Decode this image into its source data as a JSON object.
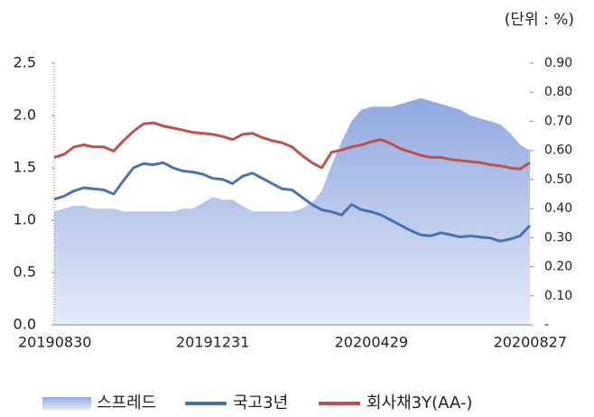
{
  "chart_data": {
    "type": "line",
    "unit_label": "(단위 : %)",
    "categories": [
      "20190830",
      null,
      null,
      null,
      null,
      null,
      null,
      null,
      null,
      null,
      null,
      null,
      null,
      null,
      null,
      null,
      "20191231",
      null,
      null,
      null,
      null,
      null,
      null,
      null,
      null,
      null,
      null,
      null,
      null,
      null,
      null,
      null,
      "20200429",
      null,
      null,
      null,
      null,
      null,
      null,
      null,
      null,
      null,
      null,
      null,
      null,
      null,
      null,
      null,
      "20200827"
    ],
    "series": [
      {
        "name": "스프레드",
        "type": "area",
        "axis": "y2",
        "color": "#9fb4e6",
        "values": [
          0.39,
          0.4,
          0.41,
          0.41,
          0.4,
          0.4,
          0.4,
          0.39,
          0.39,
          0.39,
          0.39,
          0.39,
          0.39,
          0.4,
          0.4,
          0.42,
          0.44,
          0.43,
          0.43,
          0.41,
          0.39,
          0.39,
          0.39,
          0.39,
          0.39,
          0.4,
          0.42,
          0.46,
          0.55,
          0.63,
          0.7,
          0.74,
          0.75,
          0.75,
          0.75,
          0.76,
          0.77,
          0.78,
          0.77,
          0.76,
          0.75,
          0.74,
          0.72,
          0.71,
          0.7,
          0.69,
          0.66,
          0.62,
          0.6
        ]
      },
      {
        "name": "국고3년",
        "type": "line",
        "color": "#4a72b0",
        "values": [
          1.2,
          1.23,
          1.28,
          1.31,
          1.3,
          1.29,
          1.25,
          1.38,
          1.5,
          1.54,
          1.53,
          1.55,
          1.5,
          1.47,
          1.46,
          1.44,
          1.4,
          1.39,
          1.35,
          1.42,
          1.45,
          1.4,
          1.35,
          1.3,
          1.29,
          1.22,
          1.15,
          1.1,
          1.08,
          1.05,
          1.15,
          1.1,
          1.08,
          1.05,
          1.0,
          0.95,
          0.9,
          0.86,
          0.85,
          0.88,
          0.86,
          0.84,
          0.85,
          0.84,
          0.83,
          0.8,
          0.82,
          0.85,
          0.95
        ]
      },
      {
        "name": "회사채3Y(AA-)",
        "type": "line",
        "color": "#c0504d",
        "values": [
          1.6,
          1.63,
          1.7,
          1.72,
          1.7,
          1.7,
          1.66,
          1.76,
          1.85,
          1.92,
          1.93,
          1.9,
          1.88,
          1.86,
          1.84,
          1.83,
          1.82,
          1.8,
          1.77,
          1.82,
          1.83,
          1.79,
          1.76,
          1.74,
          1.7,
          1.62,
          1.55,
          1.5,
          1.65,
          1.67,
          1.7,
          1.72,
          1.75,
          1.77,
          1.73,
          1.68,
          1.65,
          1.62,
          1.6,
          1.6,
          1.58,
          1.57,
          1.56,
          1.55,
          1.53,
          1.52,
          1.5,
          1.49,
          1.55
        ]
      }
    ],
    "ylim": [
      0,
      2.5
    ],
    "yticks": [
      {
        "value": 0,
        "label": "0.0"
      },
      0.5,
      {
        "value": 1,
        "label": "1.0"
      },
      1.5,
      {
        "value": 2,
        "label": "2.0"
      },
      2.5
    ],
    "y2lim": [
      0,
      0.9
    ],
    "y2ticks": [
      {
        "value": 0,
        "label": "-"
      },
      {
        "value": 0.1,
        "label": "0.10"
      },
      {
        "value": 0.2,
        "label": "0.20"
      },
      {
        "value": 0.3,
        "label": "0.30"
      },
      {
        "value": 0.4,
        "label": "0.40"
      },
      {
        "value": 0.5,
        "label": "0.50"
      },
      {
        "value": 0.6,
        "label": "0.60"
      },
      {
        "value": 0.7,
        "label": "0.70"
      },
      {
        "value": 0.8,
        "label": "0.80"
      },
      {
        "value": 0.9,
        "label": "0.90"
      }
    ],
    "legend": "bottom"
  }
}
